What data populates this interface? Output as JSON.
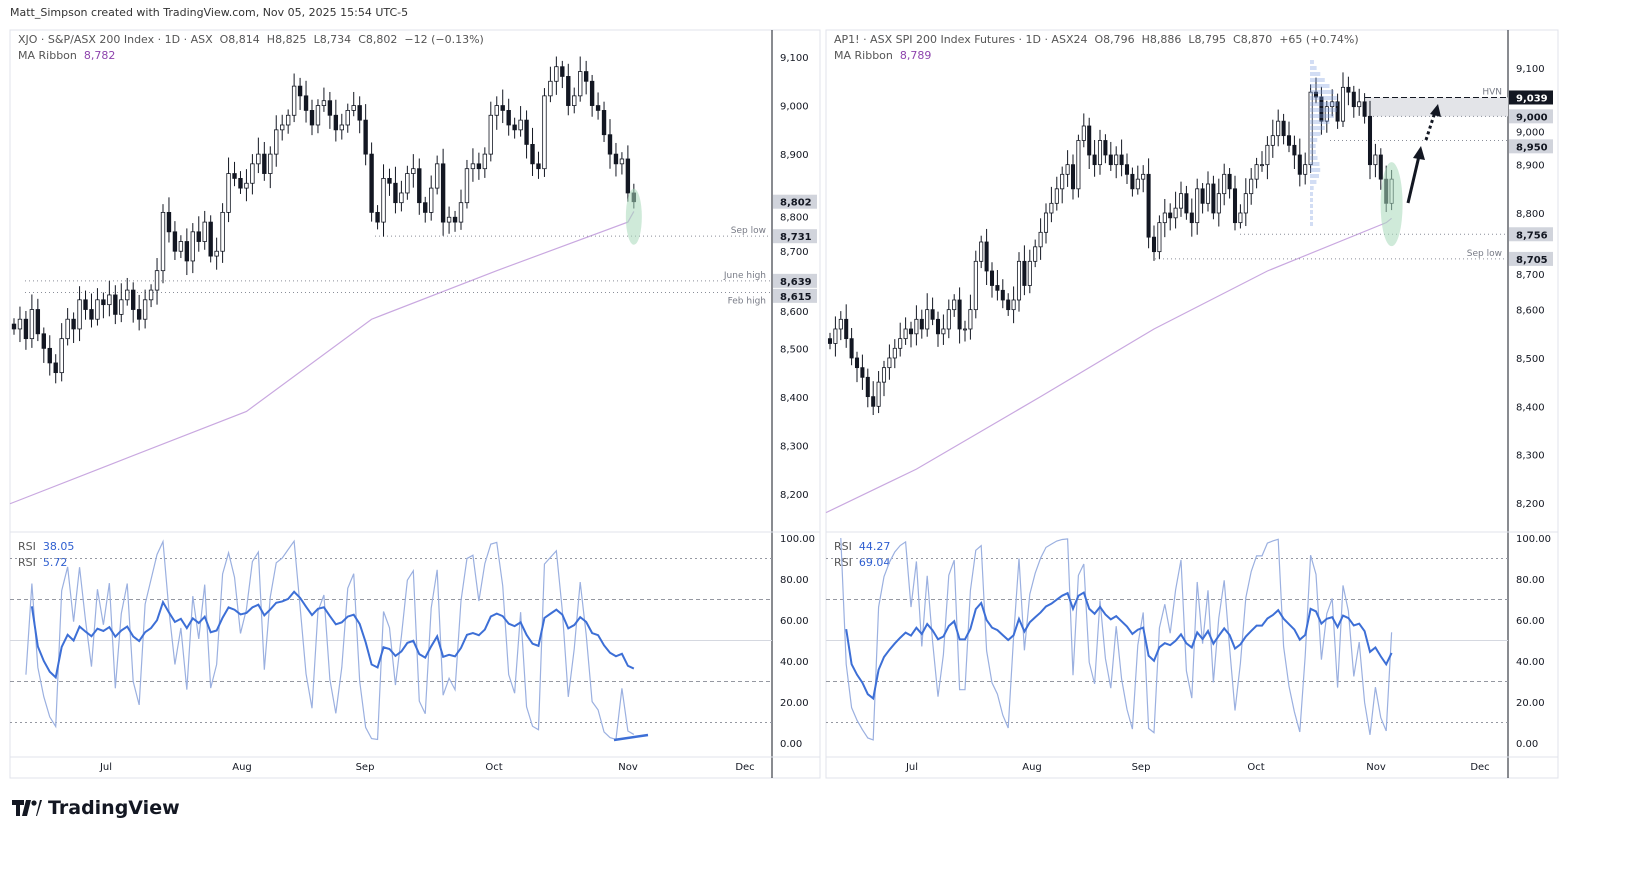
{
  "attribution": "Matt_Simpson created with TradingView.com, Nov 05, 2025 15:54 UTC-5",
  "logo_text": "TradingView",
  "colors": {
    "up_body": "#ffffff",
    "down_body": "#131722",
    "wick": "#131722",
    "ma_ribbon": "#c9a8e0",
    "rsi_main": "#3d6fd6",
    "rsi_fast": "#9bb0e0",
    "highlight": "#a8d8b9",
    "zone": "#e3e4e8"
  },
  "chart_data": [
    {
      "type": "candlestick",
      "legend": {
        "symbol": "XJO · S&P/ASX 200 Index · 1D · ASX",
        "open": "O8,814",
        "high": "H8,825",
        "low": "L8,734",
        "close": "C8,802",
        "change": "−12 (−0.13%)",
        "ma_label": "MA Ribbon",
        "ma_value": "8,782"
      },
      "rsi_legend": [
        {
          "label": "RSI",
          "value": "38.05"
        },
        {
          "label": "RSI",
          "value": "5.72"
        }
      ],
      "x_ticks": [
        "Jul",
        "Aug",
        "Sep",
        "Oct",
        "Nov",
        "Dec"
      ],
      "y_ticks": [
        "9,100",
        "9,000",
        "8,900",
        "8,800",
        "8,700",
        "8,600",
        "8,500",
        "8,400",
        "8,300",
        "8,200"
      ],
      "ylim": [
        8160,
        9150
      ],
      "rsi_ticks": [
        "100.00",
        "80.00",
        "60.00",
        "40.00",
        "20.00",
        "0.00"
      ],
      "closes": [
        8540,
        8560,
        8520,
        8580,
        8530,
        8500,
        8470,
        8450,
        8520,
        8560,
        8540,
        8600,
        8580,
        8560,
        8600,
        8590,
        8610,
        8570,
        8600,
        8620,
        8580,
        8560,
        8600,
        8620,
        8660,
        8780,
        8740,
        8700,
        8720,
        8680,
        8740,
        8720,
        8760,
        8690,
        8700,
        8780,
        8860,
        8850,
        8830,
        8840,
        8880,
        8900,
        8860,
        8900,
        8950,
        8960,
        8980,
        9040,
        9020,
        8990,
        8960,
        9000,
        9010,
        8980,
        8950,
        8960,
        8990,
        9000,
        8970,
        8900,
        8780,
        8760,
        8850,
        8840,
        8800,
        8820,
        8860,
        8870,
        8800,
        8780,
        8830,
        8880,
        8760,
        8770,
        8760,
        8800,
        8870,
        8880,
        8870,
        8900,
        8980,
        9000,
        8990,
        8960,
        8950,
        8970,
        8920,
        8880,
        8870,
        9020,
        9050,
        9080,
        9060,
        9000,
        9020,
        9070,
        9050,
        9000,
        8990,
        8940,
        8900,
        8880,
        8890,
        8820,
        8802
      ],
      "ma_ribbon": [
        [
          0,
          8180
        ],
        [
          16,
          8260
        ],
        [
          39,
          8370
        ],
        [
          60,
          8560
        ],
        [
          81,
          8660
        ],
        [
          103,
          8760
        ],
        [
          104,
          8782
        ]
      ],
      "levels": [
        {
          "label": "Sep low",
          "price": 8731,
          "axis_label": "8,731"
        },
        {
          "label": "June high",
          "price": 8639,
          "axis_label": "8,639"
        },
        {
          "label": "Feb high",
          "price": 8615,
          "axis_label": "8,615"
        }
      ],
      "last_price_label": "8,802",
      "last_price": 8802
    },
    {
      "type": "candlestick",
      "legend": {
        "symbol": "AP1! · ASX SPI 200 Index Futures · 1D · ASX24",
        "open": "O8,796",
        "high": "H8,886",
        "low": "L8,795",
        "close": "C8,870",
        "change": "+65 (+0.74%)",
        "ma_label": "MA Ribbon",
        "ma_value": "8,789"
      },
      "rsi_legend": [
        {
          "label": "RSI",
          "value": "44.27"
        },
        {
          "label": "RSI",
          "value": "69.04"
        }
      ],
      "x_ticks": [
        "Jul",
        "Aug",
        "Sep",
        "Oct",
        "Nov",
        "Dec"
      ],
      "y_ticks": [
        "9,100",
        "9,000",
        "8,900",
        "8,800",
        "8,700",
        "8,600",
        "8,500",
        "8,400",
        "8,300",
        "8,200"
      ],
      "ylim": [
        8150,
        9160
      ],
      "rsi_ticks": [
        "100.00",
        "80.00",
        "60.00",
        "40.00",
        "20.00",
        "0.00"
      ],
      "closes": [
        8530,
        8560,
        8580,
        8540,
        8500,
        8480,
        8460,
        8420,
        8400,
        8450,
        8480,
        8500,
        8520,
        8540,
        8560,
        8550,
        8580,
        8560,
        8600,
        8580,
        8550,
        8560,
        8600,
        8620,
        8560,
        8560,
        8600,
        8700,
        8740,
        8680,
        8650,
        8640,
        8620,
        8600,
        8620,
        8700,
        8650,
        8700,
        8730,
        8760,
        8800,
        8820,
        8850,
        8880,
        8900,
        8850,
        8950,
        8980,
        8920,
        8900,
        8950,
        8920,
        8900,
        8920,
        8900,
        8880,
        8850,
        8870,
        8880,
        8750,
        8720,
        8780,
        8800,
        8790,
        8810,
        8840,
        8800,
        8780,
        8850,
        8820,
        8860,
        8800,
        8840,
        8880,
        8850,
        8780,
        8800,
        8840,
        8870,
        8900,
        8900,
        8940,
        8960,
        8990,
        8960,
        8940,
        8920,
        8880,
        8900,
        9050,
        9040,
        8990,
        9020,
        9030,
        8990,
        9060,
        9050,
        9020,
        9030,
        9000,
        8900,
        8920,
        8870,
        8820,
        8870
      ],
      "ma_ribbon": [
        [
          0,
          8180
        ],
        [
          16,
          8270
        ],
        [
          39,
          8420
        ],
        [
          60,
          8560
        ],
        [
          81,
          8680
        ],
        [
          103,
          8780
        ],
        [
          104,
          8789
        ]
      ],
      "levels": [
        {
          "label": "HVN",
          "price": 9039,
          "axis_label": "9,039",
          "style": "dashed"
        },
        {
          "label": "",
          "price": 9000,
          "axis_label": "9,000"
        },
        {
          "label": "",
          "price": 8950,
          "axis_label": "8,950"
        },
        {
          "label": "",
          "price": 8756,
          "axis_label": "8,756"
        },
        {
          "label": "Sep low",
          "price": 8705,
          "axis_label": "8,705"
        }
      ],
      "zone": [
        9000,
        9039
      ]
    }
  ]
}
